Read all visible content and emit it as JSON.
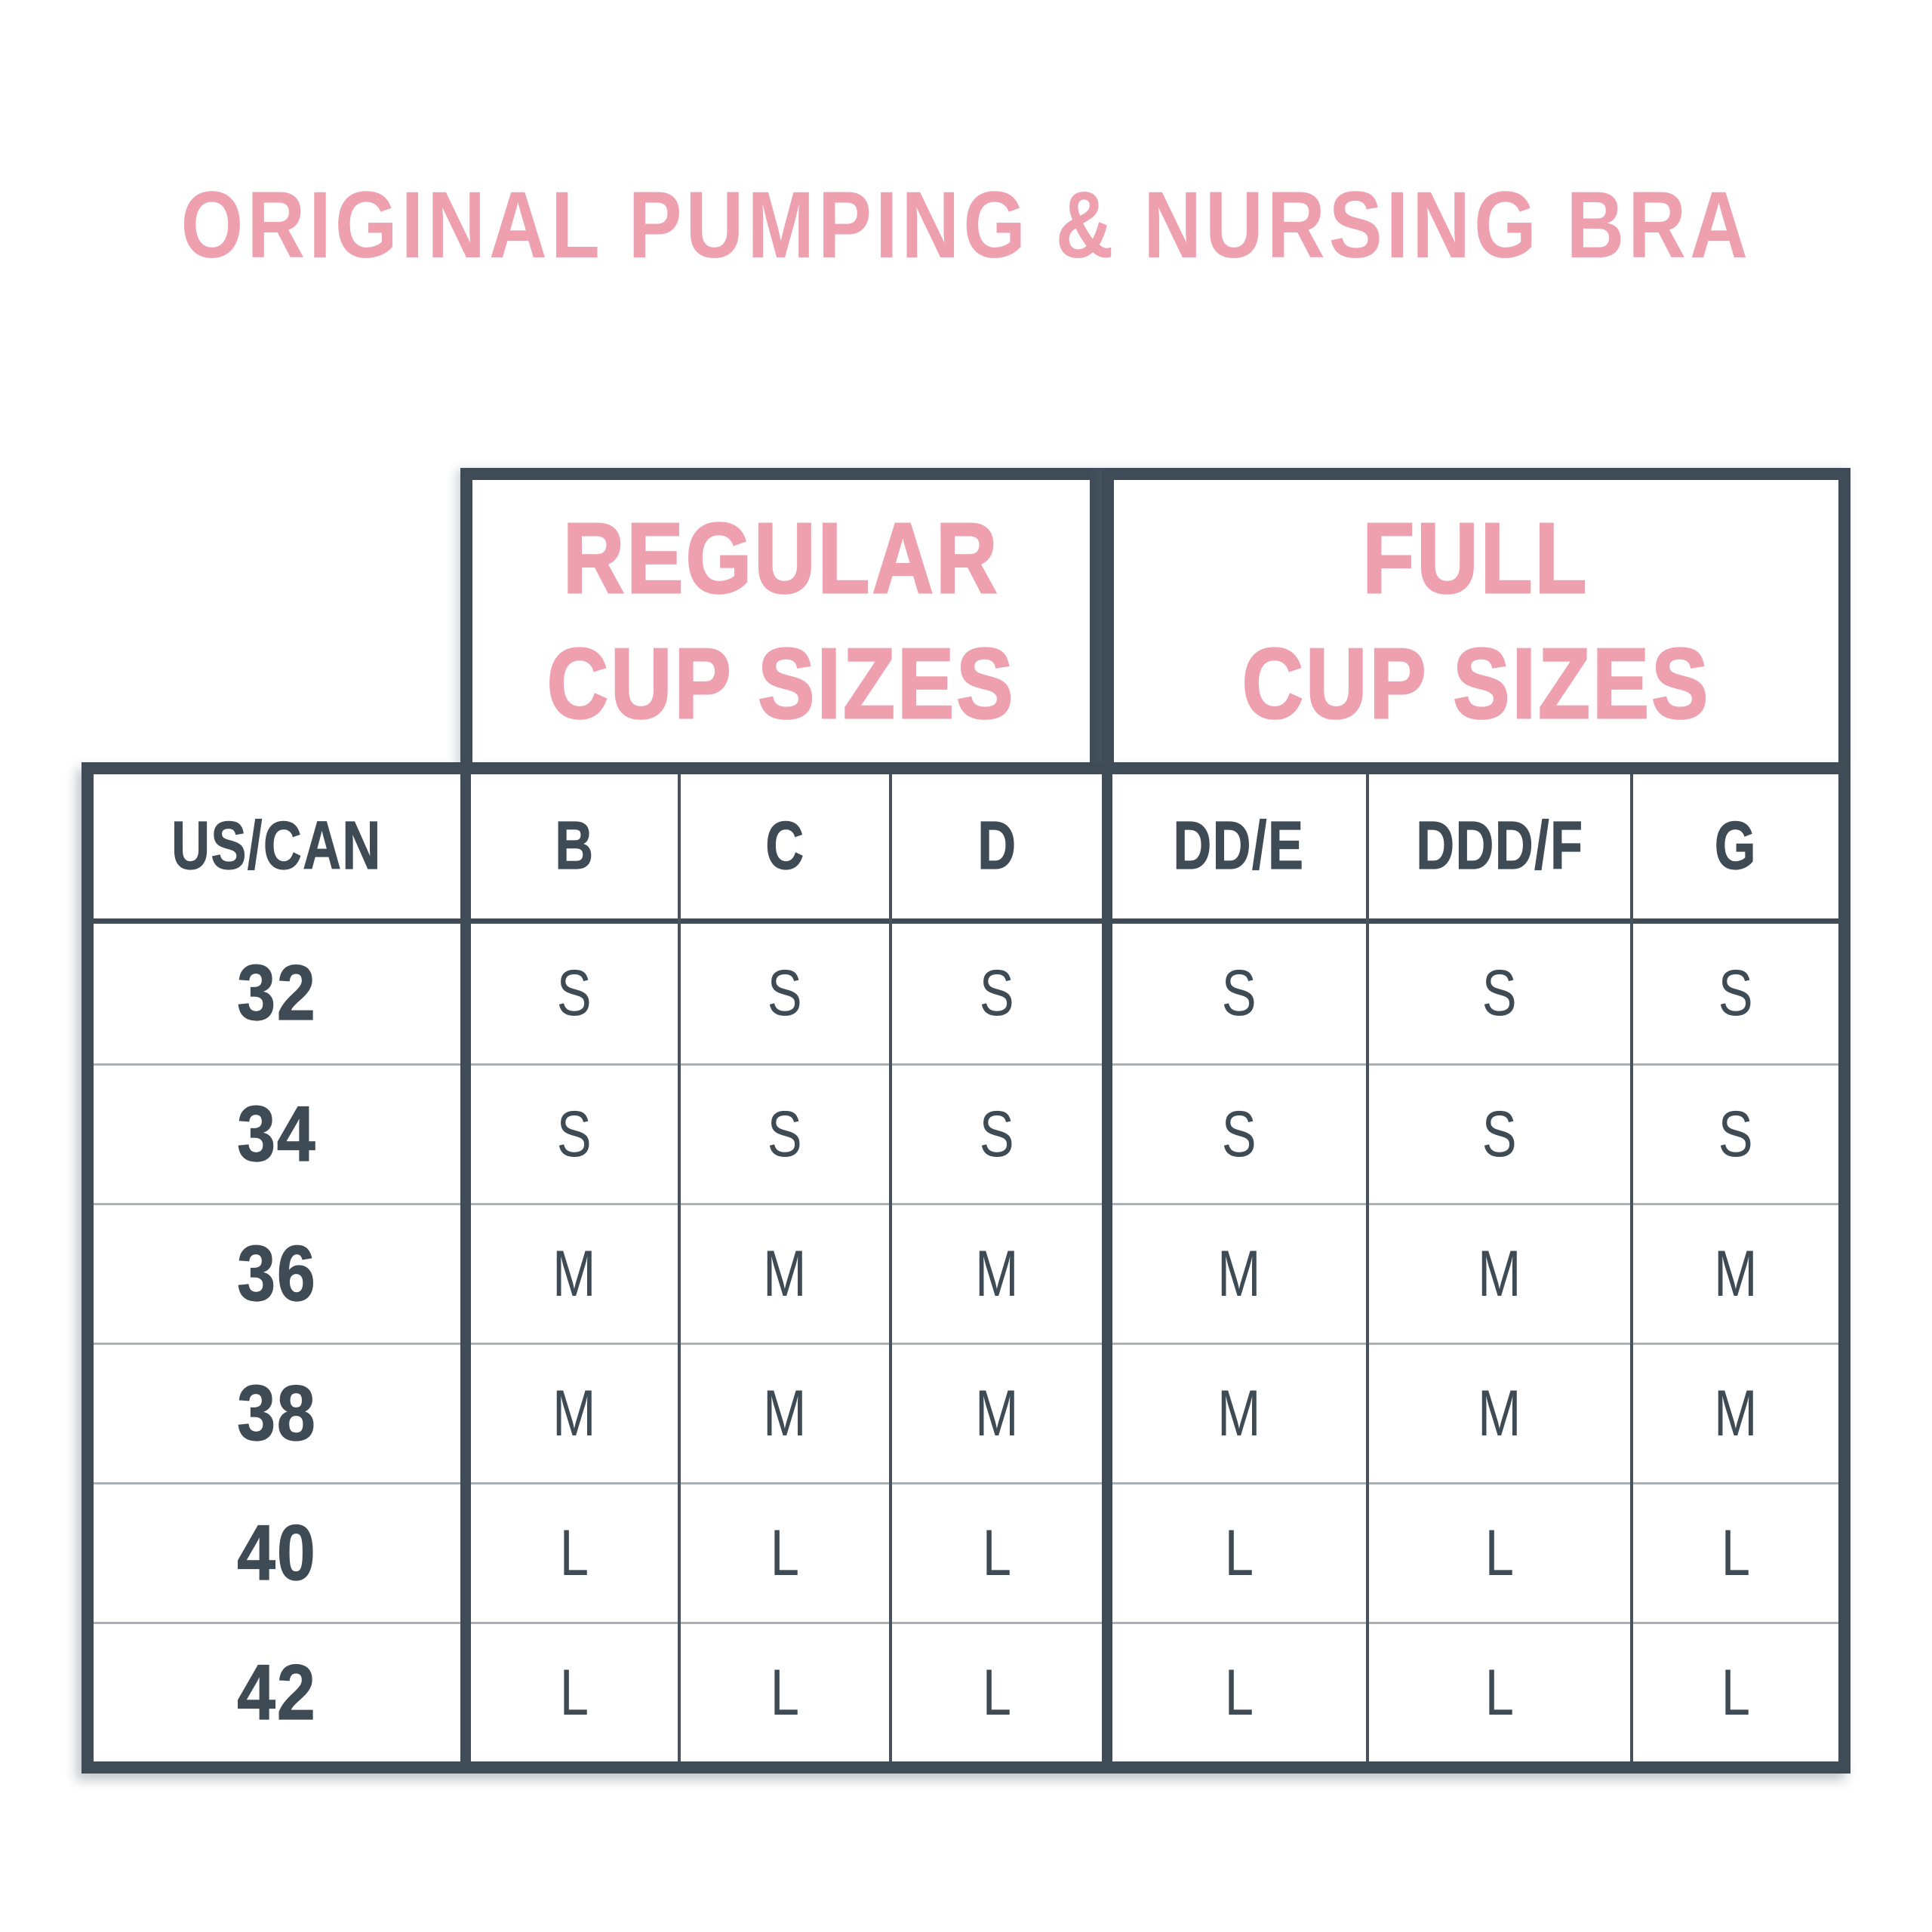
{
  "title": "ORIGINAL PUMPING & NURSING BRA",
  "colors": {
    "pink": "#eea0af",
    "slate": "#3f4c57",
    "row_divider": "#a9b1b6",
    "background": "#ffffff"
  },
  "size_groups": [
    {
      "line1": "REGULAR",
      "line2": "CUP SIZES"
    },
    {
      "line1": "FULL",
      "line2": "CUP SIZES"
    }
  ],
  "table": {
    "header": [
      "US/CAN",
      "B",
      "C",
      "D",
      "DD/E",
      "DDD/F",
      "G"
    ],
    "rows": [
      {
        "band": "32",
        "values": [
          "S",
          "S",
          "S",
          "S",
          "S",
          "S"
        ]
      },
      {
        "band": "34",
        "values": [
          "S",
          "S",
          "S",
          "S",
          "S",
          "S"
        ]
      },
      {
        "band": "36",
        "values": [
          "M",
          "M",
          "M",
          "M",
          "M",
          "M"
        ]
      },
      {
        "band": "38",
        "values": [
          "M",
          "M",
          "M",
          "M",
          "M",
          "M"
        ]
      },
      {
        "band": "40",
        "values": [
          "L",
          "L",
          "L",
          "L",
          "L",
          "L"
        ]
      },
      {
        "band": "42",
        "values": [
          "L",
          "L",
          "L",
          "L",
          "L",
          "L"
        ]
      }
    ]
  },
  "chart_data": {
    "type": "table",
    "title": "ORIGINAL PUMPING & NURSING BRA",
    "column_groups": [
      {
        "label": "REGULAR CUP SIZES",
        "columns": [
          "B",
          "C",
          "D"
        ]
      },
      {
        "label": "FULL CUP SIZES",
        "columns": [
          "DD/E",
          "DDD/F",
          "G"
        ]
      }
    ],
    "columns": [
      "US/CAN",
      "B",
      "C",
      "D",
      "DD/E",
      "DDD/F",
      "G"
    ],
    "rows": [
      [
        "32",
        "S",
        "S",
        "S",
        "S",
        "S",
        "S"
      ],
      [
        "34",
        "S",
        "S",
        "S",
        "S",
        "S",
        "S"
      ],
      [
        "36",
        "M",
        "M",
        "M",
        "M",
        "M",
        "M"
      ],
      [
        "38",
        "M",
        "M",
        "M",
        "M",
        "M",
        "M"
      ],
      [
        "40",
        "L",
        "L",
        "L",
        "L",
        "L",
        "L"
      ],
      [
        "42",
        "L",
        "L",
        "L",
        "L",
        "L",
        "L"
      ]
    ]
  }
}
